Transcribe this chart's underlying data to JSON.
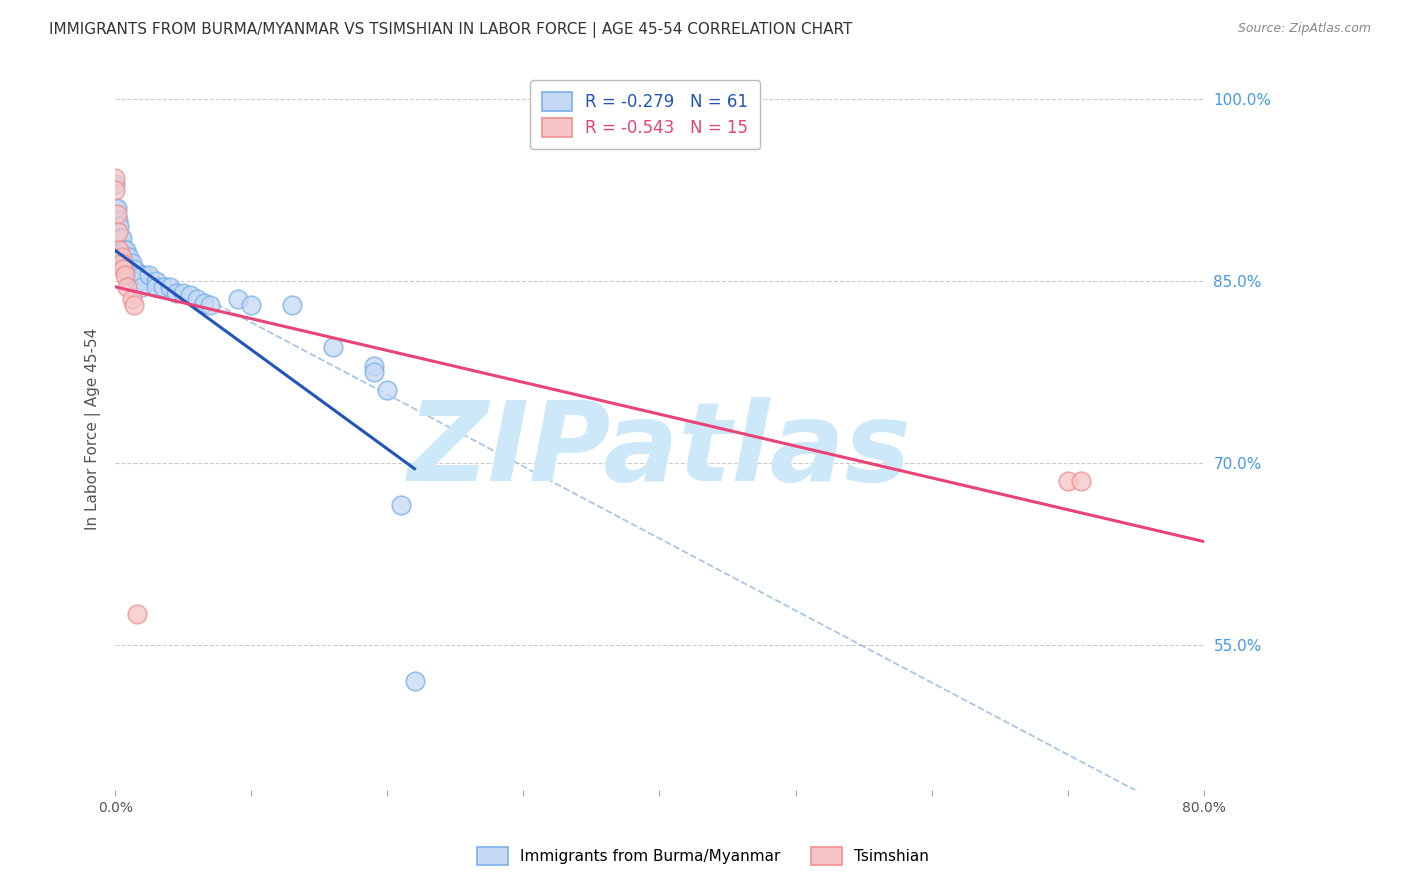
{
  "title": "IMMIGRANTS FROM BURMA/MYANMAR VS TSIMSHIAN IN LABOR FORCE | AGE 45-54 CORRELATION CHART",
  "source": "Source: ZipAtlas.com",
  "ylabel": "In Labor Force | Age 45-54",
  "xlim": [
    0.0,
    0.8
  ],
  "ylim": [
    0.43,
    1.025
  ],
  "xticks": [
    0.0,
    0.1,
    0.2,
    0.3,
    0.4,
    0.5,
    0.6,
    0.7,
    0.8
  ],
  "xticklabels": [
    "0.0%",
    "",
    "",
    "",
    "",
    "",
    "",
    "",
    "80.0%"
  ],
  "right_yticks": [
    1.0,
    0.85,
    0.7,
    0.55
  ],
  "right_yticklabels": [
    "100.0%",
    "85.0%",
    "70.0%",
    "55.0%"
  ],
  "blue_scatter": [
    [
      0.0,
      0.93
    ],
    [
      0.0,
      0.91
    ],
    [
      0.0,
      0.895
    ],
    [
      0.0,
      0.885
    ],
    [
      0.001,
      0.91
    ],
    [
      0.001,
      0.895
    ],
    [
      0.001,
      0.885
    ],
    [
      0.001,
      0.875
    ],
    [
      0.002,
      0.9
    ],
    [
      0.002,
      0.89
    ],
    [
      0.002,
      0.88
    ],
    [
      0.002,
      0.875
    ],
    [
      0.003,
      0.895
    ],
    [
      0.003,
      0.885
    ],
    [
      0.003,
      0.875
    ],
    [
      0.003,
      0.865
    ],
    [
      0.004,
      0.885
    ],
    [
      0.004,
      0.875
    ],
    [
      0.004,
      0.865
    ],
    [
      0.005,
      0.885
    ],
    [
      0.005,
      0.875
    ],
    [
      0.005,
      0.865
    ],
    [
      0.006,
      0.875
    ],
    [
      0.006,
      0.87
    ],
    [
      0.007,
      0.875
    ],
    [
      0.007,
      0.87
    ],
    [
      0.007,
      0.86
    ],
    [
      0.008,
      0.875
    ],
    [
      0.009,
      0.87
    ],
    [
      0.009,
      0.86
    ],
    [
      0.01,
      0.87
    ],
    [
      0.01,
      0.855
    ],
    [
      0.012,
      0.865
    ],
    [
      0.014,
      0.86
    ],
    [
      0.014,
      0.855
    ],
    [
      0.016,
      0.855
    ],
    [
      0.016,
      0.85
    ],
    [
      0.018,
      0.85
    ],
    [
      0.02,
      0.855
    ],
    [
      0.02,
      0.845
    ],
    [
      0.025,
      0.855
    ],
    [
      0.03,
      0.85
    ],
    [
      0.03,
      0.845
    ],
    [
      0.035,
      0.845
    ],
    [
      0.04,
      0.845
    ],
    [
      0.045,
      0.84
    ],
    [
      0.05,
      0.84
    ],
    [
      0.055,
      0.838
    ],
    [
      0.06,
      0.835
    ],
    [
      0.065,
      0.832
    ],
    [
      0.07,
      0.83
    ],
    [
      0.09,
      0.835
    ],
    [
      0.1,
      0.83
    ],
    [
      0.13,
      0.83
    ],
    [
      0.16,
      0.795
    ],
    [
      0.19,
      0.78
    ],
    [
      0.19,
      0.775
    ],
    [
      0.2,
      0.76
    ],
    [
      0.21,
      0.665
    ],
    [
      0.22,
      0.52
    ]
  ],
  "pink_scatter": [
    [
      0.0,
      0.935
    ],
    [
      0.0,
      0.925
    ],
    [
      0.001,
      0.905
    ],
    [
      0.002,
      0.89
    ],
    [
      0.003,
      0.875
    ],
    [
      0.005,
      0.87
    ],
    [
      0.005,
      0.865
    ],
    [
      0.006,
      0.86
    ],
    [
      0.007,
      0.855
    ],
    [
      0.009,
      0.845
    ],
    [
      0.012,
      0.835
    ],
    [
      0.014,
      0.83
    ],
    [
      0.016,
      0.575
    ],
    [
      0.7,
      0.685
    ],
    [
      0.71,
      0.685
    ]
  ],
  "blue_line_x": [
    0.0,
    0.22
  ],
  "blue_line_y": [
    0.875,
    0.695
  ],
  "pink_line_x": [
    0.0,
    0.8
  ],
  "pink_line_y": [
    0.845,
    0.635
  ],
  "dashed_line_x": [
    0.0,
    0.8
  ],
  "dashed_line_y": [
    0.875,
    0.4
  ],
  "watermark": "ZIPatlas",
  "watermark_color": "#cde8f8",
  "background_color": "#ffffff",
  "grid_color": "#cccccc",
  "title_color": "#333333",
  "axis_label_color": "#555555",
  "right_axis_color": "#4499ee",
  "scatter_blue": "#7ab0e8",
  "scatter_pink": "#f09090"
}
